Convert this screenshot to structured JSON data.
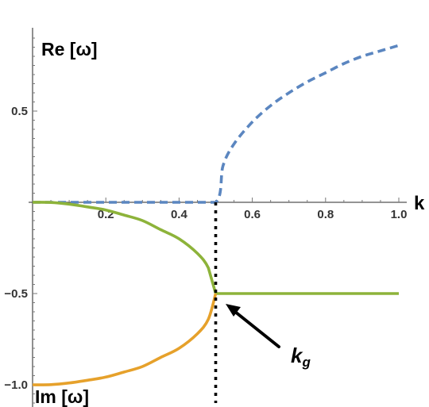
{
  "chart_data": {
    "type": "line",
    "xlim": [
      0,
      1.0
    ],
    "ylim": [
      -1.0,
      0.9
    ],
    "x_ticks": [
      {
        "value": 0.2,
        "label": "0.2"
      },
      {
        "value": 0.4,
        "label": "0.4"
      },
      {
        "value": 0.6,
        "label": "0.6"
      },
      {
        "value": 0.8,
        "label": "0.8"
      },
      {
        "value": 1.0,
        "label": "1.0"
      }
    ],
    "y_ticks": [
      {
        "value": 0.5,
        "label": "0.5"
      },
      {
        "value": -0.5,
        "label": "−0.5"
      },
      {
        "value": -1.0,
        "label": "−1.0"
      }
    ],
    "xlabel": "k",
    "ylabel_top": "Re [ω]",
    "ylabel_bottom": "Im [ω]",
    "kg": 0.5,
    "annotation": {
      "text": "k",
      "subscript": "g",
      "points_to": [
        0.5,
        -0.5
      ]
    },
    "series": [
      {
        "style": "dashed",
        "color": "#5b86c0",
        "x": [
          0.0,
          0.1,
          0.2,
          0.3,
          0.4,
          0.5,
          0.52,
          0.55,
          0.6,
          0.65,
          0.7,
          0.75,
          0.8,
          0.85,
          0.9,
          0.95,
          1.0
        ],
        "y": [
          0.0,
          0.0,
          0.0,
          0.0,
          0.0,
          0.0,
          0.2,
          0.32,
          0.44,
          0.53,
          0.6,
          0.66,
          0.71,
          0.76,
          0.8,
          0.83,
          0.86
        ]
      },
      {
        "style": "solid",
        "color": "#8db33a",
        "x": [
          0.0,
          0.05,
          0.1,
          0.15,
          0.2,
          0.25,
          0.3,
          0.35,
          0.4,
          0.45,
          0.48,
          0.5,
          0.6,
          0.7,
          0.8,
          0.9,
          1.0
        ],
        "y": [
          0.0,
          -0.001,
          -0.01,
          -0.025,
          -0.042,
          -0.07,
          -0.1,
          -0.15,
          -0.2,
          -0.28,
          -0.36,
          -0.5,
          -0.5,
          -0.5,
          -0.5,
          -0.5,
          -0.5
        ]
      },
      {
        "style": "solid",
        "color": "#e6a12b",
        "x": [
          0.0,
          0.05,
          0.1,
          0.15,
          0.2,
          0.25,
          0.3,
          0.35,
          0.4,
          0.45,
          0.48,
          0.5
        ],
        "y": [
          -1.0,
          -0.999,
          -0.99,
          -0.975,
          -0.958,
          -0.93,
          -0.9,
          -0.85,
          -0.8,
          -0.72,
          -0.64,
          -0.5
        ]
      },
      {
        "style": "dotted",
        "color": "#000000",
        "x": [
          0.5,
          0.5
        ],
        "y": [
          0.0,
          -1.1
        ]
      }
    ]
  }
}
